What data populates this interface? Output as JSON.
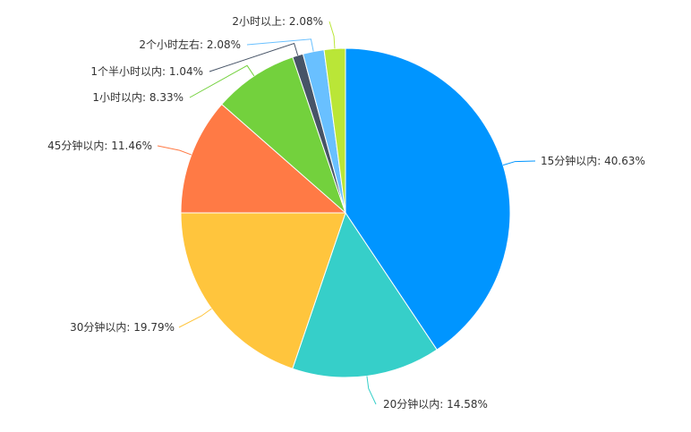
{
  "chart_data": {
    "type": "pie",
    "title": "",
    "slices": [
      {
        "label": "15分钟以内",
        "value": 40.63,
        "display": "15分钟以内: 40.63%",
        "color": "#0095ff"
      },
      {
        "label": "20分钟以内",
        "value": 14.58,
        "display": "20分钟以内: 14.58%",
        "color": "#36cfc9"
      },
      {
        "label": "30分钟以内",
        "value": 19.79,
        "display": "30分钟以内: 19.79%",
        "color": "#ffc53d"
      },
      {
        "label": "45分钟以内",
        "value": 11.46,
        "display": "45分钟以内: 11.46%",
        "color": "#ff7a45"
      },
      {
        "label": "1小时以内",
        "value": 8.33,
        "display": "1小时以内: 8.33%",
        "color": "#73d13d"
      },
      {
        "label": "1个半小时以内",
        "value": 1.04,
        "display": "1个半小时以内: 1.04%",
        "color": "#475467"
      },
      {
        "label": "2个小时左右",
        "value": 2.08,
        "display": "2个小时左右: 2.08%",
        "color": "#69c0ff"
      },
      {
        "label": "2小时以上",
        "value": 2.08,
        "display": "2小时以上: 2.08%",
        "color": "#bae637"
      }
    ]
  }
}
